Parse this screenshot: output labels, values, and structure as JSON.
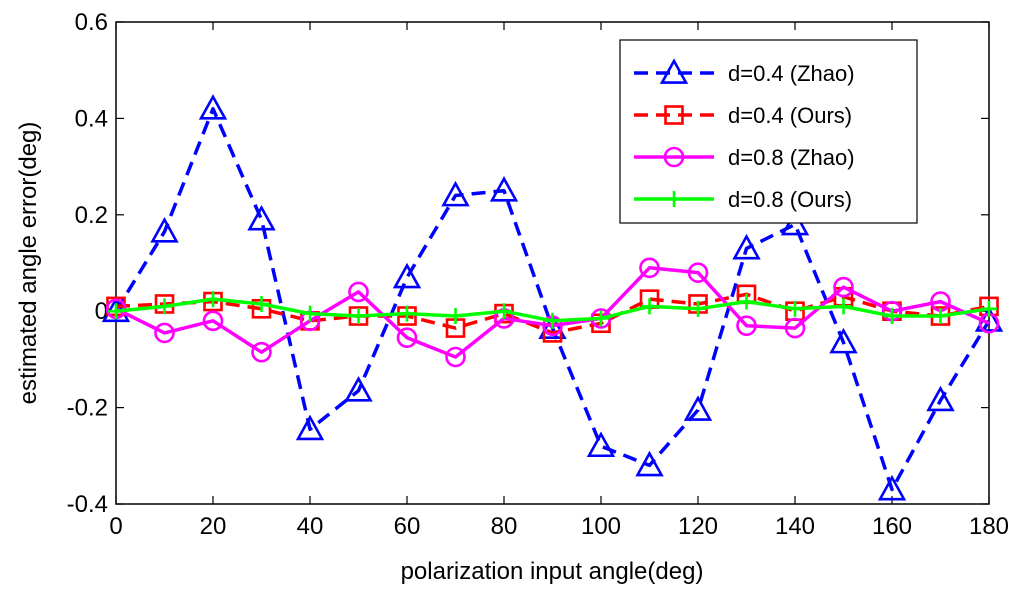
{
  "chart_data": {
    "type": "line",
    "title": "",
    "xlabel": "polarization input angle(deg)",
    "ylabel": "estimated angle error(deg)",
    "xlim": [
      0,
      180
    ],
    "ylim": [
      -0.4,
      0.6
    ],
    "xticks": [
      0,
      20,
      40,
      60,
      80,
      100,
      120,
      140,
      160,
      180
    ],
    "yticks": [
      -0.4,
      -0.2,
      0,
      0.2,
      0.4,
      0.6
    ],
    "ytick_labels": [
      "-0.4",
      "-0.2",
      "0",
      "0.2",
      "0.4",
      "0.6"
    ],
    "grid": false,
    "legend_position": "top-right",
    "x": [
      0,
      10,
      20,
      30,
      40,
      50,
      60,
      70,
      80,
      90,
      100,
      110,
      120,
      130,
      140,
      150,
      160,
      170,
      180
    ],
    "series": [
      {
        "name": "d=0.4 (Zhao)",
        "color": "#0000ff",
        "dash": "dashed",
        "marker": "triangle",
        "values": [
          0.0,
          0.165,
          0.42,
          0.19,
          -0.245,
          -0.165,
          0.07,
          0.24,
          0.25,
          -0.035,
          -0.28,
          -0.32,
          -0.205,
          0.13,
          0.18,
          -0.065,
          -0.37,
          -0.185,
          -0.02
        ]
      },
      {
        "name": "d=0.4 (Ours)",
        "color": "#ff0000",
        "dash": "dashed",
        "marker": "square",
        "values": [
          0.01,
          0.015,
          0.02,
          0.005,
          -0.02,
          -0.01,
          -0.01,
          -0.035,
          -0.005,
          -0.045,
          -0.025,
          0.025,
          0.015,
          0.035,
          0.0,
          0.03,
          0.0,
          -0.01,
          0.01
        ]
      },
      {
        "name": "d=0.8 (Zhao)",
        "color": "#ff00ff",
        "dash": "solid",
        "marker": "circle",
        "values": [
          0.005,
          -0.045,
          -0.02,
          -0.085,
          -0.02,
          0.04,
          -0.055,
          -0.095,
          -0.015,
          -0.03,
          -0.015,
          0.09,
          0.08,
          -0.03,
          -0.035,
          0.05,
          0.0,
          0.02,
          -0.025
        ]
      },
      {
        "name": "d=0.8 (Ours)",
        "color": "#00ff00",
        "dash": "solid",
        "marker": "plus",
        "values": [
          0.0,
          0.01,
          0.025,
          0.015,
          -0.005,
          -0.01,
          -0.005,
          -0.01,
          0.0,
          -0.02,
          -0.015,
          0.01,
          0.005,
          0.02,
          0.005,
          0.01,
          -0.01,
          -0.01,
          0.005
        ]
      }
    ]
  }
}
